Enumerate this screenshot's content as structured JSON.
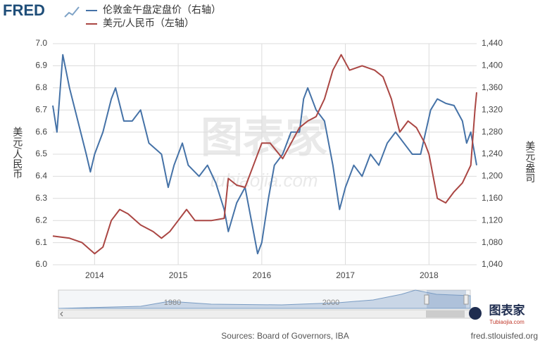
{
  "brand": "FRED",
  "chart_data": {
    "type": "line",
    "legend": "top-left",
    "grid": true,
    "xlim": [
      2013.5,
      2018.57
    ],
    "xticks": [
      2014,
      2015,
      2016,
      2017,
      2018
    ],
    "ylim": [
      6.0,
      7.0
    ],
    "yticks": [
      {
        "value": 6.0,
        "label": "6.0"
      },
      6.1,
      6.2,
      6.3,
      6.4,
      6.5,
      6.6,
      6.7,
      6.8,
      6.9,
      {
        "value": 7.0,
        "label": "7.0"
      }
    ],
    "y2lim": [
      1040,
      1440
    ],
    "y2ticks": [
      {
        "value": 1040,
        "label": "1,040"
      },
      {
        "value": 1080,
        "label": "1,080"
      },
      {
        "value": 1120,
        "label": "1,120"
      },
      {
        "value": 1160,
        "label": "1,160"
      },
      {
        "value": 1200,
        "label": "1,200"
      },
      {
        "value": 1240,
        "label": "1,240"
      },
      {
        "value": 1280,
        "label": "1,280"
      },
      {
        "value": 1320,
        "label": "1,320"
      },
      {
        "value": 1360,
        "label": "1,360"
      },
      {
        "value": 1400,
        "label": "1,400"
      },
      {
        "value": 1440,
        "label": "1,440"
      }
    ],
    "ylabel": "美元/人民币",
    "y2label": "美元/盎司",
    "series": [
      {
        "name": "伦敦金午盘定盘价（右轴）",
        "color": "#4572a7",
        "axis": "y2",
        "x": [
          2013.5,
          2013.55,
          2013.62,
          2013.7,
          2013.8,
          2013.9,
          2013.95,
          2014.0,
          2014.1,
          2014.2,
          2014.25,
          2014.35,
          2014.45,
          2014.55,
          2014.65,
          2014.8,
          2014.88,
          2014.95,
          2015.05,
          2015.12,
          2015.25,
          2015.35,
          2015.45,
          2015.55,
          2015.6,
          2015.7,
          2015.8,
          2015.9,
          2015.95,
          2016.0,
          2016.08,
          2016.15,
          2016.25,
          2016.35,
          2016.45,
          2016.5,
          2016.55,
          2016.65,
          2016.75,
          2016.85,
          2016.93,
          2017.0,
          2017.1,
          2017.2,
          2017.3,
          2017.4,
          2017.5,
          2017.6,
          2017.7,
          2017.8,
          2017.9,
          2018.02,
          2018.1,
          2018.2,
          2018.3,
          2018.4,
          2018.45,
          2018.5,
          2018.57
        ],
        "values": [
          1328,
          1280,
          1420,
          1360,
          1300,
          1240,
          1208,
          1240,
          1280,
          1340,
          1360,
          1300,
          1300,
          1320,
          1260,
          1240,
          1180,
          1220,
          1260,
          1220,
          1200,
          1220,
          1188,
          1140,
          1100,
          1152,
          1180,
          1100,
          1060,
          1080,
          1160,
          1220,
          1240,
          1280,
          1280,
          1340,
          1360,
          1320,
          1300,
          1220,
          1140,
          1180,
          1220,
          1200,
          1240,
          1220,
          1260,
          1280,
          1260,
          1240,
          1240,
          1320,
          1340,
          1332,
          1328,
          1300,
          1260,
          1280,
          1220
        ]
      },
      {
        "name": "美元/人民币（左轴）",
        "color": "#aa4643",
        "x": [
          2013.5,
          2013.7,
          2013.85,
          2014.0,
          2014.1,
          2014.2,
          2014.3,
          2014.4,
          2014.55,
          2014.7,
          2014.8,
          2014.9,
          2015.0,
          2015.1,
          2015.2,
          2015.4,
          2015.55,
          2015.6,
          2015.7,
          2015.8,
          2015.9,
          2016.0,
          2016.1,
          2016.25,
          2016.35,
          2016.45,
          2016.55,
          2016.65,
          2016.75,
          2016.85,
          2016.95,
          2017.05,
          2017.2,
          2017.35,
          2017.45,
          2017.55,
          2017.65,
          2017.75,
          2017.85,
          2017.95,
          2018.0,
          2018.1,
          2018.2,
          2018.3,
          2018.4,
          2018.5,
          2018.55,
          2018.57
        ],
        "values": [
          6.13,
          6.12,
          6.1,
          6.05,
          6.08,
          6.2,
          6.25,
          6.23,
          6.18,
          6.15,
          6.12,
          6.15,
          6.2,
          6.25,
          6.2,
          6.2,
          6.21,
          6.39,
          6.36,
          6.35,
          6.45,
          6.55,
          6.55,
          6.48,
          6.55,
          6.62,
          6.65,
          6.67,
          6.75,
          6.88,
          6.95,
          6.88,
          6.9,
          6.88,
          6.85,
          6.75,
          6.6,
          6.65,
          6.62,
          6.55,
          6.5,
          6.3,
          6.28,
          6.33,
          6.37,
          6.45,
          6.7,
          6.78
        ]
      }
    ]
  },
  "navigator": {
    "labels": [
      "1980",
      "2000"
    ]
  },
  "watermark": {
    "text": "图表家",
    "url": "tubiaojia.com"
  },
  "footer": {
    "source": "Sources: Board of Governors, IBA",
    "site": "fred.stlouisfed.org"
  },
  "logo": {
    "text": "图表家",
    "url": "Tubiaojia.com"
  }
}
